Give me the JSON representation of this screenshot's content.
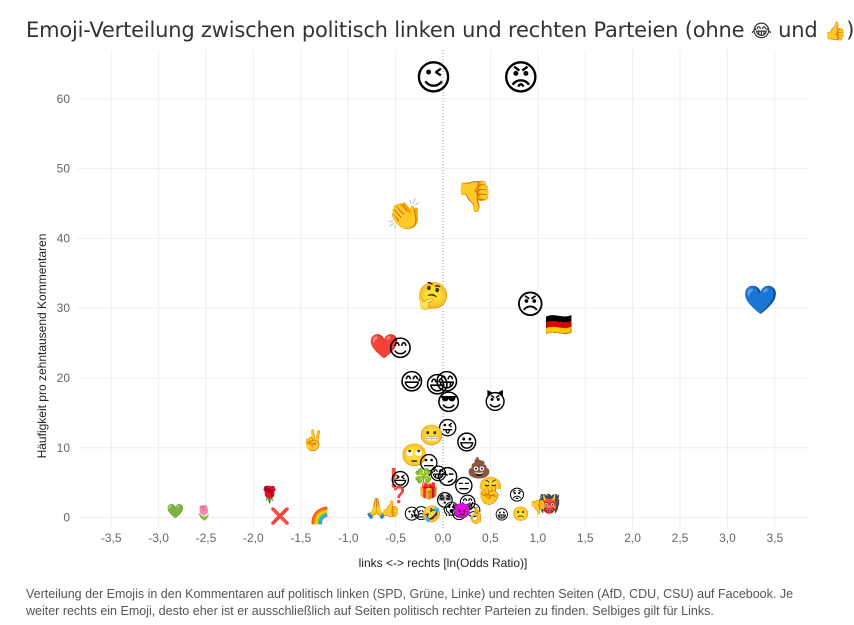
{
  "title": {
    "text": "Emoji-Verteilung zwischen politisch linken und rechten Parteien (ohne",
    "emoji_a": "😂",
    "connector": "und",
    "emoji_b": "👍",
    "close": ")"
  },
  "caption": "Verteilung der Emojis in den Kommentaren auf politisch linken (SPD, Grüne, Linke) und rechten Seiten (AfD, CDU, CSU) auf Facebook. Je weiter rechts ein Emoji, desto eher ist er ausschließlich auf Seiten politisch rechter Parteien zu finden. Selbiges gilt für Links.",
  "colors": {
    "grid": "#eeeeee",
    "zero_line": "#999999",
    "text": "#666666"
  },
  "chart_data": {
    "type": "scatter",
    "xlabel": "links <-> rechts  [ln(Odds Ratio)]",
    "ylabel": "Häufigkeit pro zehntausend Kommentaren",
    "xlim": [
      -3.85,
      3.85
    ],
    "ylim": [
      -1.5,
      67
    ],
    "grid": true,
    "x_ticks": [
      -3.5,
      -3.0,
      -2.5,
      -2.0,
      -1.5,
      -1.0,
      -0.5,
      0.0,
      0.5,
      1.0,
      1.5,
      2.0,
      2.5,
      3.0,
      3.5
    ],
    "x_tick_labels": [
      "-3,5",
      "-3,0",
      "-2,5",
      "-2,0",
      "-1,5",
      "-1,0",
      "-0,5",
      "0,0",
      "0,5",
      "1,0",
      "1,5",
      "2,0",
      "2,5",
      "3,0",
      "3,5"
    ],
    "y_ticks": [
      0,
      10,
      20,
      30,
      40,
      50,
      60
    ],
    "y_tick_labels": [
      "0",
      "10",
      "20",
      "30",
      "40",
      "50",
      "60"
    ],
    "points": [
      {
        "emoji": "😉",
        "x": -0.1,
        "y": 62.9,
        "size": 36
      },
      {
        "emoji": "😡",
        "x": 0.82,
        "y": 62.9,
        "size": 36
      },
      {
        "emoji": "👎",
        "x": 0.33,
        "y": 45.9,
        "size": 30
      },
      {
        "emoji": "👏",
        "x": -0.4,
        "y": 43.3,
        "size": 30
      },
      {
        "emoji": "🤔",
        "x": -0.1,
        "y": 31.7,
        "size": 26
      },
      {
        "emoji": "😠",
        "x": 0.92,
        "y": 30.5,
        "size": 28
      },
      {
        "emoji": "💙",
        "x": 3.35,
        "y": 31.2,
        "size": 28
      },
      {
        "emoji": "🇩🇪",
        "x": 1.22,
        "y": 27.5,
        "size": 22
      },
      {
        "emoji": "❤️",
        "x": -0.62,
        "y": 24.5,
        "size": 24
      },
      {
        "emoji": "😊",
        "x": -0.45,
        "y": 24.2,
        "size": 24
      },
      {
        "emoji": "😅",
        "x": -0.33,
        "y": 19.4,
        "size": 24
      },
      {
        "emoji": "😁",
        "x": 0.04,
        "y": 19.4,
        "size": 24
      },
      {
        "emoji": "😄",
        "x": -0.06,
        "y": 19.0,
        "size": 24
      },
      {
        "emoji": "😈",
        "x": 0.55,
        "y": 16.4,
        "size": 22
      },
      {
        "emoji": "😎",
        "x": 0.06,
        "y": 16.5,
        "size": 24
      },
      {
        "emoji": "✌️",
        "x": -1.37,
        "y": 11.1,
        "size": 20
      },
      {
        "emoji": "😜",
        "x": 0.05,
        "y": 12.8,
        "size": 20
      },
      {
        "emoji": "😬",
        "x": -0.12,
        "y": 11.8,
        "size": 20
      },
      {
        "emoji": "😃",
        "x": 0.25,
        "y": 10.6,
        "size": 22
      },
      {
        "emoji": "🙄",
        "x": -0.3,
        "y": 8.8,
        "size": 22
      },
      {
        "emoji": "😐",
        "x": -0.15,
        "y": 7.8,
        "size": 20
      },
      {
        "emoji": "💩",
        "x": 0.38,
        "y": 7.2,
        "size": 20
      },
      {
        "emoji": "❗",
        "x": -0.52,
        "y": 5.6,
        "size": 18
      },
      {
        "emoji": "😆",
        "x": -0.45,
        "y": 5.4,
        "size": 20
      },
      {
        "emoji": "🍀",
        "x": -0.2,
        "y": 5.6,
        "size": 18
      },
      {
        "emoji": "😏",
        "x": 0.05,
        "y": 5.7,
        "size": 22
      },
      {
        "emoji": "😂",
        "x": -0.05,
        "y": 6.2,
        "size": 18
      },
      {
        "emoji": "😑",
        "x": 0.22,
        "y": 4.5,
        "size": 20
      },
      {
        "emoji": "😤",
        "x": 0.5,
        "y": 4.4,
        "size": 20
      },
      {
        "emoji": "✊",
        "x": 0.49,
        "y": 3.1,
        "size": 18
      },
      {
        "emoji": "😟",
        "x": 0.78,
        "y": 3.2,
        "size": 16
      },
      {
        "emoji": "👹",
        "x": 1.12,
        "y": 1.9,
        "size": 18
      },
      {
        "emoji": "👎",
        "x": 1.0,
        "y": 1.4,
        "size": 14
      },
      {
        "emoji": "🎁",
        "x": -0.15,
        "y": 3.8,
        "size": 16
      },
      {
        "emoji": "❓",
        "x": -0.46,
        "y": 3.3,
        "size": 16
      },
      {
        "emoji": "😳",
        "x": 0.02,
        "y": 2.4,
        "size": 18
      },
      {
        "emoji": "😋",
        "x": 0.26,
        "y": 2.0,
        "size": 18
      },
      {
        "emoji": "🙏",
        "x": -0.7,
        "y": 1.4,
        "size": 20
      },
      {
        "emoji": "👍",
        "x": -0.55,
        "y": 1.3,
        "size": 16
      },
      {
        "emoji": "😘",
        "x": -0.33,
        "y": 0.5,
        "size": 16
      },
      {
        "emoji": "😪",
        "x": -0.23,
        "y": 0.6,
        "size": 16
      },
      {
        "emoji": "🤣",
        "x": -0.12,
        "y": 0.5,
        "size": 16
      },
      {
        "emoji": "😱",
        "x": 0.09,
        "y": 1.2,
        "size": 16
      },
      {
        "emoji": "😇",
        "x": 0.17,
        "y": 0.6,
        "size": 16
      },
      {
        "emoji": "😢",
        "x": 0.32,
        "y": 1.0,
        "size": 16
      },
      {
        "emoji": "👿",
        "x": 0.2,
        "y": 1.1,
        "size": 16
      },
      {
        "emoji": "👌",
        "x": 0.35,
        "y": 0.3,
        "size": 16
      },
      {
        "emoji": "😀",
        "x": 0.62,
        "y": 0.3,
        "size": 14
      },
      {
        "emoji": "🙁",
        "x": 0.82,
        "y": 0.4,
        "size": 14
      },
      {
        "emoji": "🌹",
        "x": -1.83,
        "y": 3.3,
        "size": 16
      },
      {
        "emoji": "❌",
        "x": -1.72,
        "y": 0.2,
        "size": 16
      },
      {
        "emoji": "🌈",
        "x": -1.3,
        "y": 0.3,
        "size": 16
      },
      {
        "emoji": "🌷",
        "x": -2.52,
        "y": 0.6,
        "size": 14
      },
      {
        "emoji": "💚",
        "x": -2.82,
        "y": 0.8,
        "size": 14
      }
    ]
  }
}
